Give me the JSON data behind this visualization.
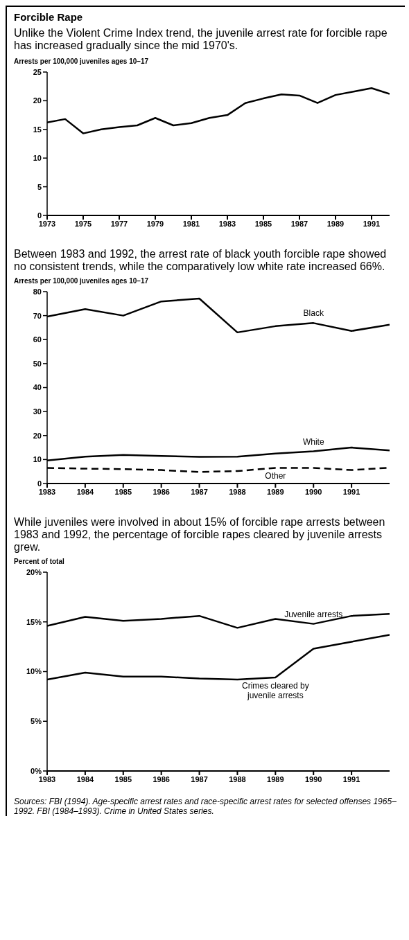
{
  "chart_data": [
    {
      "type": "line",
      "title": "Forcible Rape",
      "subtitle": "Unlike the Violent Crime Index trend, the juvenile arrest rate for forcible rape has increased gradually since the mid 1970's.",
      "ylabel": "Arrests per 100,000 juveniles ages 10–17",
      "x": [
        1973,
        1974,
        1975,
        1976,
        1977,
        1978,
        1979,
        1980,
        1981,
        1982,
        1983,
        1984,
        1985,
        1986,
        1987,
        1988,
        1989,
        1990,
        1991,
        1992
      ],
      "xlim": [
        1973,
        1992
      ],
      "xticks": [
        1973,
        1975,
        1977,
        1979,
        1981,
        1983,
        1985,
        1987,
        1989,
        1991
      ],
      "ylim": [
        0,
        25
      ],
      "yticks": [
        0,
        5,
        10,
        15,
        20,
        25
      ],
      "line_style": "solid",
      "series": [
        {
          "color": "#000000",
          "values": [
            16.2,
            16.8,
            14.3,
            15.0,
            15.4,
            15.7,
            17.0,
            15.7,
            16.1,
            17.0,
            17.5,
            19.6,
            20.4,
            21.1,
            20.9,
            19.6,
            21.0,
            21.6,
            22.2,
            21.2
          ]
        }
      ]
    },
    {
      "type": "line",
      "title": "Between 1983 and 1992, the arrest rate of black youth forcible rape showed no consistent trends, while the comparatively low white rate increased 66%.",
      "ylabel": "Arrests per 100,000 juveniles ages 10–17",
      "x": [
        1983,
        1984,
        1985,
        1986,
        1987,
        1988,
        1989,
        1990,
        1991,
        1992
      ],
      "xlim": [
        1983,
        1992
      ],
      "xticks": [
        1983,
        1984,
        1985,
        1986,
        1987,
        1988,
        1989,
        1990,
        1991
      ],
      "ylim": [
        0,
        80
      ],
      "yticks": [
        0,
        10,
        20,
        30,
        40,
        50,
        60,
        70,
        80
      ],
      "series": [
        {
          "name": "Black",
          "color": "#000000",
          "line_style": "solid",
          "values": [
            69.6,
            72.7,
            70,
            75.9,
            77.1,
            63,
            65.6,
            66.9,
            63.6,
            66.2
          ]
        },
        {
          "name": "White",
          "color": "#000000",
          "line_style": "solid",
          "values": [
            9.6,
            11.2,
            11.9,
            11.5,
            11.1,
            11.2,
            12.5,
            13.4,
            15,
            13.8
          ]
        },
        {
          "name": "Other",
          "color": "#000000",
          "line_style": "dashed",
          "values": [
            6.5,
            6.2,
            6,
            5.6,
            4.8,
            5.2,
            6.5,
            6.5,
            5.6,
            6.6
          ]
        }
      ]
    },
    {
      "type": "line",
      "title": "While juveniles were involved in about 15% of forcible rape arrests between 1983 and 1992, the percentage of forcible rapes cleared by juvenile arrests grew.",
      "ylabel": "Percent of total",
      "x": [
        1983,
        1984,
        1985,
        1986,
        1987,
        1988,
        1989,
        1990,
        1991,
        1992
      ],
      "xlim": [
        1983,
        1992
      ],
      "xticks": [
        1983,
        1984,
        1985,
        1986,
        1987,
        1988,
        1989,
        1990,
        1991
      ],
      "ylim": [
        0,
        20
      ],
      "yticks": [
        {
          "value": 0,
          "label": "0%"
        },
        {
          "value": 5,
          "label": "5%"
        },
        {
          "value": 10,
          "label": "10%"
        },
        {
          "value": 15,
          "label": "15%"
        },
        {
          "value": 20,
          "label": "20%"
        }
      ],
      "line_style": "solid",
      "series": [
        {
          "name": "Juvenile arrests",
          "color": "#000000",
          "values": [
            14.6,
            15.5,
            15.1,
            15.3,
            15.6,
            14.4,
            15.3,
            14.8,
            15.6,
            15.8
          ]
        },
        {
          "name": "Crimes cleared by juvenile arrests",
          "color": "#000000",
          "values": [
            9.2,
            9.9,
            9.5,
            9.5,
            9.3,
            9.2,
            9.4,
            12.3,
            13.0,
            13.7
          ]
        }
      ],
      "annotations": [
        "Sources: FBI (1994). Age-specific arrest rates and race-specific arrest rates for selected offenses 1965–1992. FBI (1984–1993). Crime in United States series."
      ]
    }
  ]
}
